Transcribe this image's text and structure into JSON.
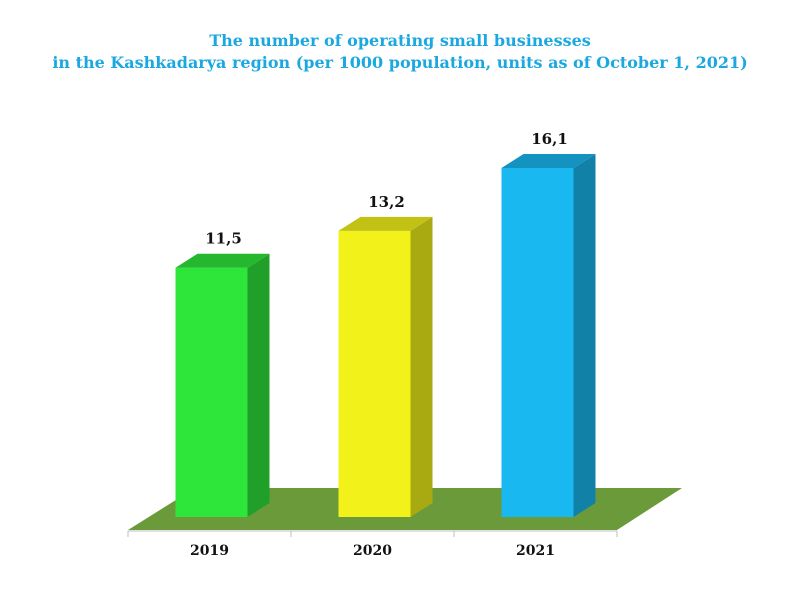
{
  "chart_data": {
    "type": "bar",
    "title_lines": [
      "The number of operating small businesses",
      "in the Kashkadarya region (per 1000 population, units as of October 1, 2021)"
    ],
    "categories": [
      "2019",
      "2020",
      "2021"
    ],
    "values": [
      11.5,
      13.2,
      16.1
    ],
    "value_labels": [
      "11,5",
      "13,2",
      "16,1"
    ],
    "colors": [
      "#2ee53a",
      "#f2f21a",
      "#1ab8f0"
    ],
    "floor_color": "#6a9a3a",
    "xlabel": "",
    "ylabel": "",
    "ylim": [
      0,
      16.1
    ],
    "grid": false,
    "legend": "none"
  }
}
